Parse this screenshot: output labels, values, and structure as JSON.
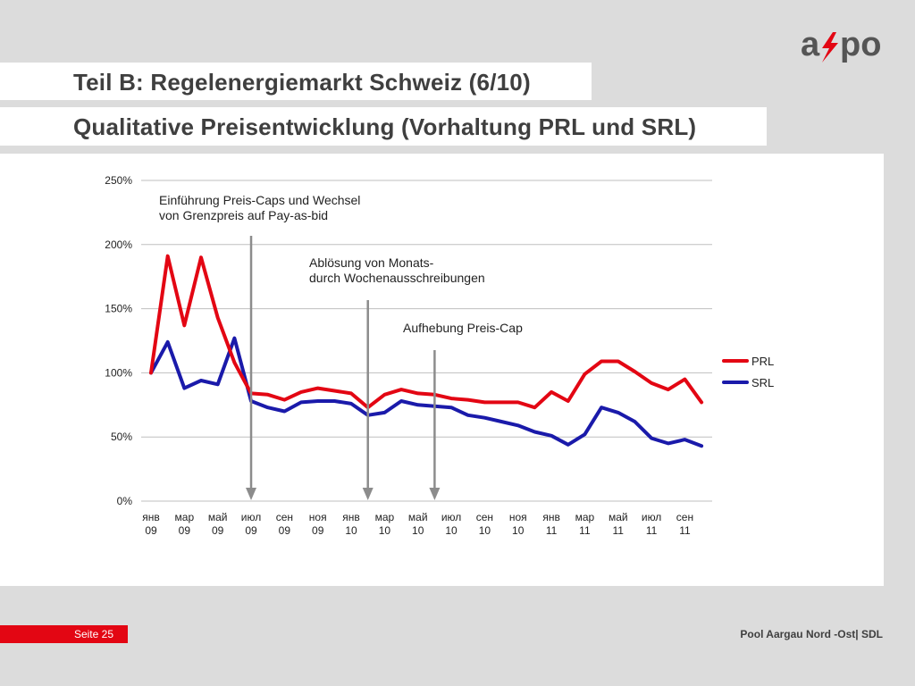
{
  "header": {
    "title": "Teil B:  Regelenergiemarkt Schweiz (6/10)",
    "subtitle": "Qualitative Preisentwicklung (Vorhaltung PRL und SRL)"
  },
  "logo": {
    "text_a": "a",
    "text_po": "po",
    "icon": "axpo-lightning-logo"
  },
  "footer": {
    "page": "Seite 25",
    "right": "Pool Aargau Nord -Ost| SDL"
  },
  "colors": {
    "prl": "#e30613",
    "srl": "#1a1aaa",
    "arrow": "#8c8c8c",
    "grid": "#bfbfbf"
  },
  "chart_data": {
    "type": "line",
    "ylim": [
      0,
      250
    ],
    "y_ticks": [
      "0%",
      "50%",
      "100%",
      "150%",
      "200%",
      "250%"
    ],
    "x_tick_labels": [
      [
        "янв",
        "09"
      ],
      [
        "мар",
        "09"
      ],
      [
        "май",
        "09"
      ],
      [
        "июл",
        "09"
      ],
      [
        "сен",
        "09"
      ],
      [
        "ноя",
        "09"
      ],
      [
        "янв",
        "10"
      ],
      [
        "мар",
        "10"
      ],
      [
        "май",
        "10"
      ],
      [
        "июл",
        "10"
      ],
      [
        "сен",
        "10"
      ],
      [
        "ноя",
        "10"
      ],
      [
        "янв",
        "11"
      ],
      [
        "мар",
        "11"
      ],
      [
        "май",
        "11"
      ],
      [
        "июл",
        "11"
      ],
      [
        "сен",
        "11"
      ]
    ],
    "legend_position": "right",
    "grid": true,
    "series": [
      {
        "name": "PRL",
        "values": [
          100,
          191,
          137,
          190,
          143,
          108,
          84,
          83,
          79,
          85,
          88,
          86,
          84,
          73,
          83,
          87,
          84,
          83,
          80,
          79,
          77,
          77,
          77,
          73,
          85,
          78,
          99,
          109,
          109,
          101,
          92,
          87,
          95,
          77
        ]
      },
      {
        "name": "SRL",
        "values": [
          100,
          124,
          88,
          94,
          91,
          127,
          78,
          73,
          70,
          77,
          78,
          78,
          76,
          67,
          69,
          78,
          75,
          74,
          73,
          67,
          65,
          62,
          59,
          54,
          51,
          44,
          52,
          73,
          69,
          62,
          49,
          45,
          48,
          43
        ]
      }
    ],
    "annotations": [
      {
        "lines": [
          "Einführung Preis-Caps und Wechsel",
          "von Grenzpreis auf Pay-as-bid"
        ],
        "arrow_index": 6
      },
      {
        "lines": [
          "Ablösung von Monats-",
          "durch Wochenausschreibungen"
        ],
        "arrow_index": 13
      },
      {
        "lines": [
          "Aufhebung  Preis-Cap"
        ],
        "arrow_index": 17
      }
    ]
  }
}
